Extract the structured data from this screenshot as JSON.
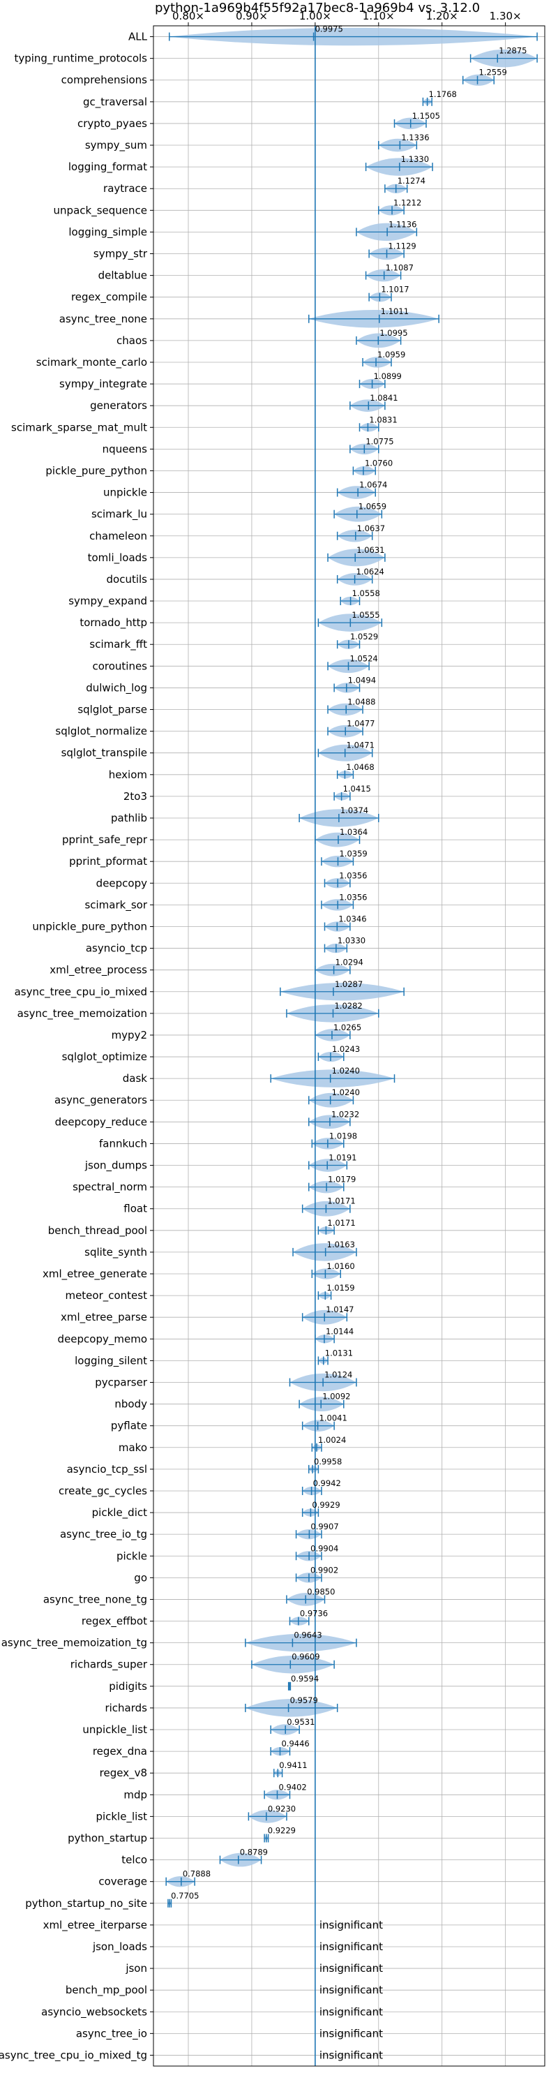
{
  "chart_data": {
    "type": "violin",
    "title": "python-1a969b4f55f92a17bec8-1a969b4 vs. 3.12.0",
    "x_ticks": [
      0.8,
      0.9,
      1.0,
      1.1,
      1.2,
      1.3
    ],
    "x_tick_labels": [
      "0.80×",
      "0.90×",
      "1.00×",
      "1.10×",
      "1.20×",
      "1.30×"
    ],
    "xlim": [
      0.745,
      1.362
    ],
    "reference_line": 1.0,
    "grid": true,
    "insignificant_label": "insignificant",
    "benchmarks": [
      {
        "name": "ALL",
        "value": 0.9975,
        "label": "0.9975",
        "lo": 0.77,
        "hi": 1.35
      },
      {
        "name": "typing_runtime_protocols",
        "value": 1.2875,
        "label": "1.2875",
        "lo": 1.245,
        "hi": 1.35
      },
      {
        "name": "comprehensions",
        "value": 1.2559,
        "label": "1.2559",
        "lo": 1.233,
        "hi": 1.282
      },
      {
        "name": "gc_traversal",
        "value": 1.1768,
        "label": "1.1768",
        "lo": 1.17,
        "hi": 1.184
      },
      {
        "name": "crypto_pyaes",
        "value": 1.1505,
        "label": "1.1505",
        "lo": 1.125,
        "hi": 1.175
      },
      {
        "name": "sympy_sum",
        "value": 1.1336,
        "label": "1.1336",
        "lo": 1.1,
        "hi": 1.16
      },
      {
        "name": "logging_format",
        "value": 1.133,
        "label": "1.1330",
        "lo": 1.08,
        "hi": 1.185
      },
      {
        "name": "raytrace",
        "value": 1.1274,
        "label": "1.1274",
        "lo": 1.11,
        "hi": 1.145
      },
      {
        "name": "unpack_sequence",
        "value": 1.1212,
        "label": "1.1212",
        "lo": 1.1,
        "hi": 1.14
      },
      {
        "name": "logging_simple",
        "value": 1.1136,
        "label": "1.1136",
        "lo": 1.065,
        "hi": 1.16
      },
      {
        "name": "sympy_str",
        "value": 1.1129,
        "label": "1.1129",
        "lo": 1.085,
        "hi": 1.14
      },
      {
        "name": "deltablue",
        "value": 1.1087,
        "label": "1.1087",
        "lo": 1.08,
        "hi": 1.135
      },
      {
        "name": "regex_compile",
        "value": 1.1017,
        "label": "1.1017",
        "lo": 1.085,
        "hi": 1.12
      },
      {
        "name": "async_tree_none",
        "value": 1.1011,
        "label": "1.1011",
        "lo": 0.99,
        "hi": 1.195
      },
      {
        "name": "chaos",
        "value": 1.0995,
        "label": "1.0995",
        "lo": 1.065,
        "hi": 1.135
      },
      {
        "name": "scimark_monte_carlo",
        "value": 1.0959,
        "label": "1.0959",
        "lo": 1.075,
        "hi": 1.12
      },
      {
        "name": "sympy_integrate",
        "value": 1.0899,
        "label": "1.0899",
        "lo": 1.07,
        "hi": 1.11
      },
      {
        "name": "generators",
        "value": 1.0841,
        "label": "1.0841",
        "lo": 1.055,
        "hi": 1.11
      },
      {
        "name": "scimark_sparse_mat_mult",
        "value": 1.0831,
        "label": "1.0831",
        "lo": 1.07,
        "hi": 1.1
      },
      {
        "name": "nqueens",
        "value": 1.0775,
        "label": "1.0775",
        "lo": 1.055,
        "hi": 1.1
      },
      {
        "name": "pickle_pure_python",
        "value": 1.076,
        "label": "1.0760",
        "lo": 1.06,
        "hi": 1.095
      },
      {
        "name": "unpickle",
        "value": 1.0674,
        "label": "1.0674",
        "lo": 1.035,
        "hi": 1.095
      },
      {
        "name": "scimark_lu",
        "value": 1.0659,
        "label": "1.0659",
        "lo": 1.03,
        "hi": 1.105
      },
      {
        "name": "chameleon",
        "value": 1.0637,
        "label": "1.0637",
        "lo": 1.035,
        "hi": 1.09
      },
      {
        "name": "tomli_loads",
        "value": 1.0631,
        "label": "1.0631",
        "lo": 1.02,
        "hi": 1.11
      },
      {
        "name": "docutils",
        "value": 1.0624,
        "label": "1.0624",
        "lo": 1.035,
        "hi": 1.09
      },
      {
        "name": "sympy_expand",
        "value": 1.0558,
        "label": "1.0558",
        "lo": 1.04,
        "hi": 1.07
      },
      {
        "name": "tornado_http",
        "value": 1.0555,
        "label": "1.0555",
        "lo": 1.005,
        "hi": 1.105
      },
      {
        "name": "scimark_fft",
        "value": 1.0529,
        "label": "1.0529",
        "lo": 1.035,
        "hi": 1.07
      },
      {
        "name": "coroutines",
        "value": 1.0524,
        "label": "1.0524",
        "lo": 1.02,
        "hi": 1.085
      },
      {
        "name": "dulwich_log",
        "value": 1.0494,
        "label": "1.0494",
        "lo": 1.03,
        "hi": 1.07
      },
      {
        "name": "sqlglot_parse",
        "value": 1.0488,
        "label": "1.0488",
        "lo": 1.02,
        "hi": 1.075
      },
      {
        "name": "sqlglot_normalize",
        "value": 1.0477,
        "label": "1.0477",
        "lo": 1.02,
        "hi": 1.075
      },
      {
        "name": "sqlglot_transpile",
        "value": 1.0471,
        "label": "1.0471",
        "lo": 1.005,
        "hi": 1.09
      },
      {
        "name": "hexiom",
        "value": 1.0468,
        "label": "1.0468",
        "lo": 1.035,
        "hi": 1.06
      },
      {
        "name": "2to3",
        "value": 1.0415,
        "label": "1.0415",
        "lo": 1.03,
        "hi": 1.055
      },
      {
        "name": "pathlib",
        "value": 1.0374,
        "label": "1.0374",
        "lo": 0.975,
        "hi": 1.1
      },
      {
        "name": "pprint_safe_repr",
        "value": 1.0364,
        "label": "1.0364",
        "lo": 1.0,
        "hi": 1.07
      },
      {
        "name": "pprint_pformat",
        "value": 1.0359,
        "label": "1.0359",
        "lo": 1.01,
        "hi": 1.06
      },
      {
        "name": "deepcopy",
        "value": 1.0356,
        "label": "1.0356",
        "lo": 1.015,
        "hi": 1.055
      },
      {
        "name": "scimark_sor",
        "value": 1.0356,
        "label": "1.0356",
        "lo": 1.01,
        "hi": 1.06
      },
      {
        "name": "unpickle_pure_python",
        "value": 1.0346,
        "label": "1.0346",
        "lo": 1.015,
        "hi": 1.055
      },
      {
        "name": "asyncio_tcp",
        "value": 1.033,
        "label": "1.0330",
        "lo": 1.015,
        "hi": 1.05
      },
      {
        "name": "xml_etree_process",
        "value": 1.0294,
        "label": "1.0294",
        "lo": 1.0,
        "hi": 1.055
      },
      {
        "name": "async_tree_cpu_io_mixed",
        "value": 1.0287,
        "label": "1.0287",
        "lo": 0.945,
        "hi": 1.14
      },
      {
        "name": "async_tree_memoization",
        "value": 1.0282,
        "label": "1.0282",
        "lo": 0.955,
        "hi": 1.1
      },
      {
        "name": "mypy2",
        "value": 1.0265,
        "label": "1.0265",
        "lo": 1.0,
        "hi": 1.055
      },
      {
        "name": "sqlglot_optimize",
        "value": 1.0243,
        "label": "1.0243",
        "lo": 1.005,
        "hi": 1.045
      },
      {
        "name": "dask",
        "value": 1.024,
        "label": "1.0240",
        "lo": 0.93,
        "hi": 1.125
      },
      {
        "name": "async_generators",
        "value": 1.024,
        "label": "1.0240",
        "lo": 0.99,
        "hi": 1.06
      },
      {
        "name": "deepcopy_reduce",
        "value": 1.0232,
        "label": "1.0232",
        "lo": 0.99,
        "hi": 1.055
      },
      {
        "name": "fannkuch",
        "value": 1.0198,
        "label": "1.0198",
        "lo": 0.995,
        "hi": 1.045
      },
      {
        "name": "json_dumps",
        "value": 1.0191,
        "label": "1.0191",
        "lo": 0.99,
        "hi": 1.05
      },
      {
        "name": "spectral_norm",
        "value": 1.0179,
        "label": "1.0179",
        "lo": 0.99,
        "hi": 1.045
      },
      {
        "name": "float",
        "value": 1.0171,
        "label": "1.0171",
        "lo": 0.98,
        "hi": 1.055
      },
      {
        "name": "bench_thread_pool",
        "value": 1.0171,
        "label": "1.0171",
        "lo": 1.005,
        "hi": 1.03
      },
      {
        "name": "sqlite_synth",
        "value": 1.0163,
        "label": "1.0163",
        "lo": 0.965,
        "hi": 1.065
      },
      {
        "name": "xml_etree_generate",
        "value": 1.016,
        "label": "1.0160",
        "lo": 0.995,
        "hi": 1.04
      },
      {
        "name": "meteor_contest",
        "value": 1.0159,
        "label": "1.0159",
        "lo": 1.005,
        "hi": 1.025
      },
      {
        "name": "xml_etree_parse",
        "value": 1.0147,
        "label": "1.0147",
        "lo": 0.98,
        "hi": 1.05
      },
      {
        "name": "deepcopy_memo",
        "value": 1.0144,
        "label": "1.0144",
        "lo": 1.0,
        "hi": 1.03
      },
      {
        "name": "logging_silent",
        "value": 1.0131,
        "label": "1.0131",
        "lo": 1.005,
        "hi": 1.02
      },
      {
        "name": "pycparser",
        "value": 1.0124,
        "label": "1.0124",
        "lo": 0.96,
        "hi": 1.065
      },
      {
        "name": "nbody",
        "value": 1.0092,
        "label": "1.0092",
        "lo": 0.975,
        "hi": 1.045
      },
      {
        "name": "pyflate",
        "value": 1.0041,
        "label": "1.0041",
        "lo": 0.98,
        "hi": 1.03
      },
      {
        "name": "mako",
        "value": 1.0024,
        "label": "1.0024",
        "lo": 0.995,
        "hi": 1.01
      },
      {
        "name": "asyncio_tcp_ssl",
        "value": 0.9958,
        "label": "0.9958",
        "lo": 0.99,
        "hi": 1.005
      },
      {
        "name": "create_gc_cycles",
        "value": 0.9942,
        "label": "0.9942",
        "lo": 0.98,
        "hi": 1.01
      },
      {
        "name": "pickle_dict",
        "value": 0.9929,
        "label": "0.9929",
        "lo": 0.98,
        "hi": 1.005
      },
      {
        "name": "async_tree_io_tg",
        "value": 0.9907,
        "label": "0.9907",
        "lo": 0.97,
        "hi": 1.01
      },
      {
        "name": "pickle",
        "value": 0.9904,
        "label": "0.9904",
        "lo": 0.97,
        "hi": 1.01
      },
      {
        "name": "go",
        "value": 0.9902,
        "label": "0.9902",
        "lo": 0.97,
        "hi": 1.01
      },
      {
        "name": "async_tree_none_tg",
        "value": 0.985,
        "label": "0.9850",
        "lo": 0.955,
        "hi": 1.015
      },
      {
        "name": "regex_effbot",
        "value": 0.9736,
        "label": "0.9736",
        "lo": 0.96,
        "hi": 0.99
      },
      {
        "name": "async_tree_memoization_tg",
        "value": 0.9643,
        "label": "0.9643",
        "lo": 0.89,
        "hi": 1.065
      },
      {
        "name": "richards_super",
        "value": 0.9609,
        "label": "0.9609",
        "lo": 0.9,
        "hi": 1.03
      },
      {
        "name": "pidigits",
        "value": 0.9594,
        "label": "0.9594",
        "lo": 0.958,
        "hi": 0.961
      },
      {
        "name": "richards",
        "value": 0.9579,
        "label": "0.9579",
        "lo": 0.89,
        "hi": 1.035
      },
      {
        "name": "unpickle_list",
        "value": 0.9531,
        "label": "0.9531",
        "lo": 0.93,
        "hi": 0.975
      },
      {
        "name": "regex_dna",
        "value": 0.9446,
        "label": "0.9446",
        "lo": 0.93,
        "hi": 0.96
      },
      {
        "name": "regex_v8",
        "value": 0.9411,
        "label": "0.9411",
        "lo": 0.935,
        "hi": 0.948
      },
      {
        "name": "mdp",
        "value": 0.9402,
        "label": "0.9402",
        "lo": 0.92,
        "hi": 0.96
      },
      {
        "name": "pickle_list",
        "value": 0.923,
        "label": "0.9230",
        "lo": 0.895,
        "hi": 0.955
      },
      {
        "name": "python_startup",
        "value": 0.9229,
        "label": "0.9229",
        "lo": 0.92,
        "hi": 0.926
      },
      {
        "name": "telco",
        "value": 0.8789,
        "label": "0.8789",
        "lo": 0.85,
        "hi": 0.915
      },
      {
        "name": "coverage",
        "value": 0.7888,
        "label": "0.7888",
        "lo": 0.765,
        "hi": 0.81
      },
      {
        "name": "python_startup_no_site",
        "value": 0.7705,
        "label": "0.7705",
        "lo": 0.768,
        "hi": 0.773
      },
      {
        "name": "xml_etree_iterparse",
        "value": null,
        "label": null
      },
      {
        "name": "json_loads",
        "value": null,
        "label": null
      },
      {
        "name": "json",
        "value": null,
        "label": null
      },
      {
        "name": "bench_mp_pool",
        "value": null,
        "label": null
      },
      {
        "name": "asyncio_websockets",
        "value": null,
        "label": null
      },
      {
        "name": "async_tree_io",
        "value": null,
        "label": null
      },
      {
        "name": "async_tree_cpu_io_mixed_tg",
        "value": null,
        "label": null
      }
    ]
  },
  "colors": {
    "violin": "#a9c8e6",
    "marker": "#1f77b4",
    "reference": "#1f77b4",
    "grid": "#b0b0b0",
    "axis": "#000000"
  }
}
